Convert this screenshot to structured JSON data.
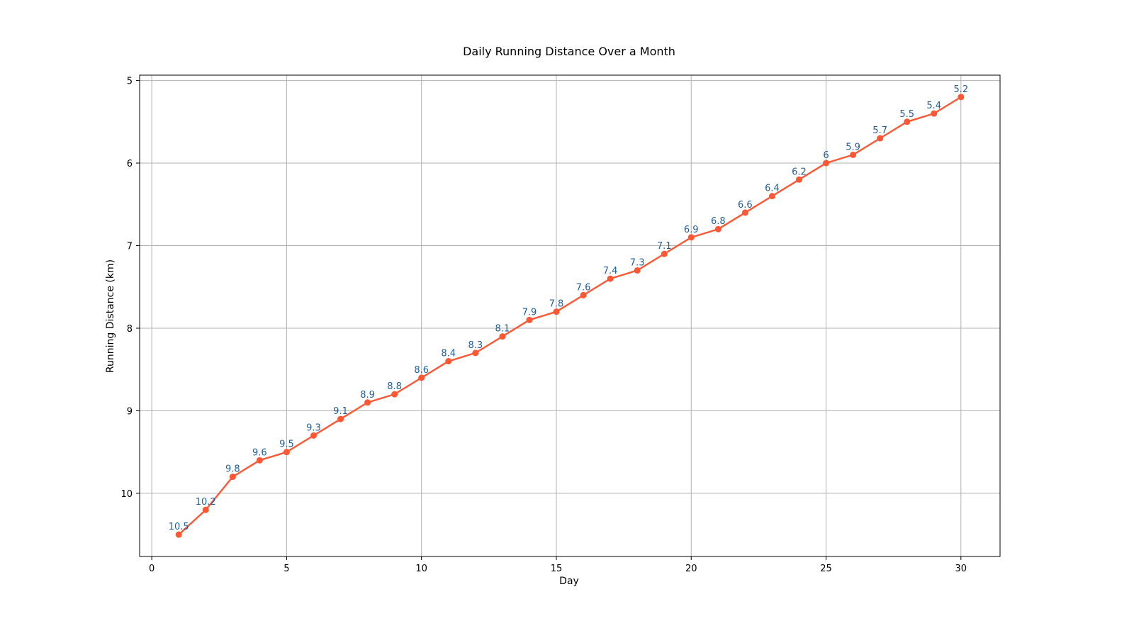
{
  "chart_data": {
    "type": "line",
    "title": "Daily Running Distance Over a Month",
    "xlabel": "Day",
    "ylabel": "Running Distance (km)",
    "x": [
      1,
      2,
      3,
      4,
      5,
      6,
      7,
      8,
      9,
      10,
      11,
      12,
      13,
      14,
      15,
      16,
      17,
      18,
      19,
      20,
      21,
      22,
      23,
      24,
      25,
      26,
      27,
      28,
      29,
      30
    ],
    "series": [
      {
        "values": [
          10.5,
          10.2,
          9.8,
          9.6,
          9.5,
          9.3,
          9.1,
          8.9,
          8.8,
          8.6,
          8.4,
          8.3,
          8.1,
          7.9,
          7.8,
          7.6,
          7.4,
          7.3,
          7.1,
          6.9,
          6.8,
          6.6,
          6.4,
          6.2,
          6,
          5.9,
          5.7,
          5.5,
          5.4,
          5.2
        ],
        "labels": [
          "10.5",
          "10.2",
          "9.8",
          "9.6",
          "9.5",
          "9.3",
          "9.1",
          "8.9",
          "8.8",
          "8.6",
          "8.4",
          "8.3",
          "8.1",
          "7.9",
          "7.8",
          "7.6",
          "7.4",
          "7.3",
          "7.1",
          "6.9",
          "6.8",
          "6.6",
          "6.4",
          "6.2",
          "6",
          "5.9",
          "5.7",
          "5.5",
          "5.4",
          "5.2"
        ],
        "color": "#ff5733",
        "marker": "circle"
      }
    ],
    "xticks": [
      "0",
      "5",
      "10",
      "15",
      "20",
      "25",
      "30"
    ],
    "yticks": [
      "5",
      "6",
      "7",
      "8",
      "9",
      "10"
    ],
    "xlim": [
      -0.45,
      31.45
    ],
    "ylim": [
      10.765,
      4.935
    ],
    "y_inverted": true,
    "grid": true,
    "legend": "none",
    "label_color": "#1f5f99"
  }
}
